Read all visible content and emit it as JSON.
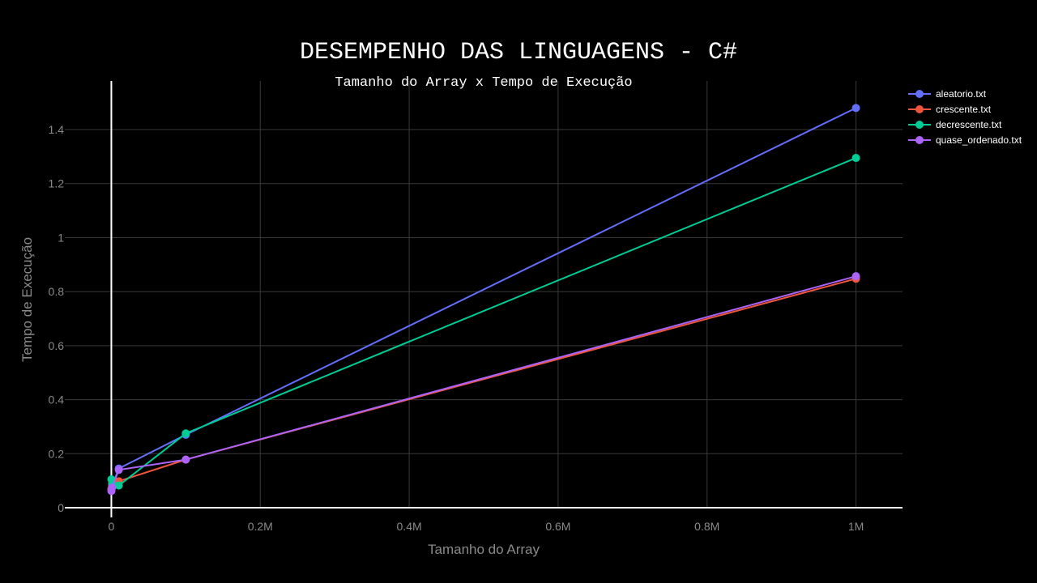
{
  "chart_data": {
    "type": "line",
    "title": "DESEMPENHO DAS LINGUAGENS - C#",
    "subtitle": "Tamanho do Array x Tempo de Execução",
    "xlabel": "Tamanho do Array",
    "ylabel": "Tempo de Execução",
    "xlim": [
      -62500,
      1062500
    ],
    "ylim": [
      0,
      1.58
    ],
    "xticks": [
      0,
      200000,
      400000,
      600000,
      800000,
      1000000
    ],
    "xtick_labels": [
      "0",
      "0.2M",
      "0.4M",
      "0.6M",
      "0.8M",
      "1M"
    ],
    "yticks": [
      0,
      0.2,
      0.4,
      0.6,
      0.8,
      1,
      1.2,
      1.4
    ],
    "ytick_labels": [
      "0",
      "0.2",
      "0.4",
      "0.6",
      "0.8",
      "1",
      "1.2",
      "1.4"
    ],
    "grid": true,
    "legend_position": "top-right",
    "series": [
      {
        "name": "aleatorio.txt",
        "color": "#636efa",
        "x": [
          100,
          1000,
          10000,
          100000,
          1000000
        ],
        "y": [
          0.068,
          0.08,
          0.145,
          0.27,
          1.48
        ]
      },
      {
        "name": "crescente.txt",
        "color": "#ef553b",
        "x": [
          100,
          1000,
          10000,
          100000,
          1000000
        ],
        "y": [
          0.07,
          0.085,
          0.098,
          0.178,
          0.848
        ]
      },
      {
        "name": "decrescente.txt",
        "color": "#00cc96",
        "x": [
          100,
          1000,
          10000,
          100000,
          1000000
        ],
        "y": [
          0.105,
          0.09,
          0.082,
          0.275,
          1.295
        ]
      },
      {
        "name": "quase_ordenado.txt",
        "color": "#ab63fa",
        "x": [
          100,
          1000,
          10000,
          100000,
          1000000
        ],
        "y": [
          0.062,
          0.075,
          0.14,
          0.178,
          0.857
        ]
      }
    ]
  }
}
